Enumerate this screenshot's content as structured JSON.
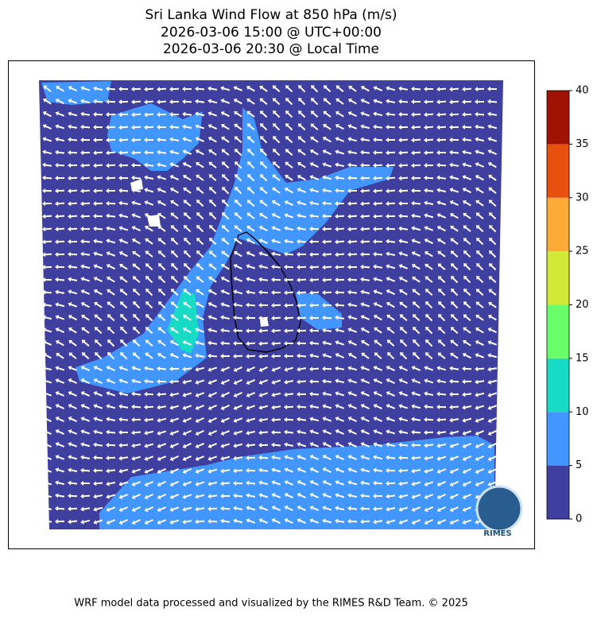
{
  "title": [
    "Sri Lanka Wind Flow at 850 hPa (m/s)",
    "2026-03-06 15:00 @ UTC+00:00",
    "2026-03-06 20:30 @ Local Time"
  ],
  "colorbar": {
    "levels": [
      0,
      5,
      10,
      15,
      20,
      25,
      30,
      35,
      40
    ],
    "colors": [
      "#3f3f9f",
      "#4196ff",
      "#18dbc5",
      "#6afd6a",
      "#d2e935",
      "#feaa37",
      "#e8500e",
      "#a01202"
    ]
  },
  "logo": "RIMES",
  "footer": "WRF model data processed and visualized by the RIMES R&D Team. © 2025"
}
